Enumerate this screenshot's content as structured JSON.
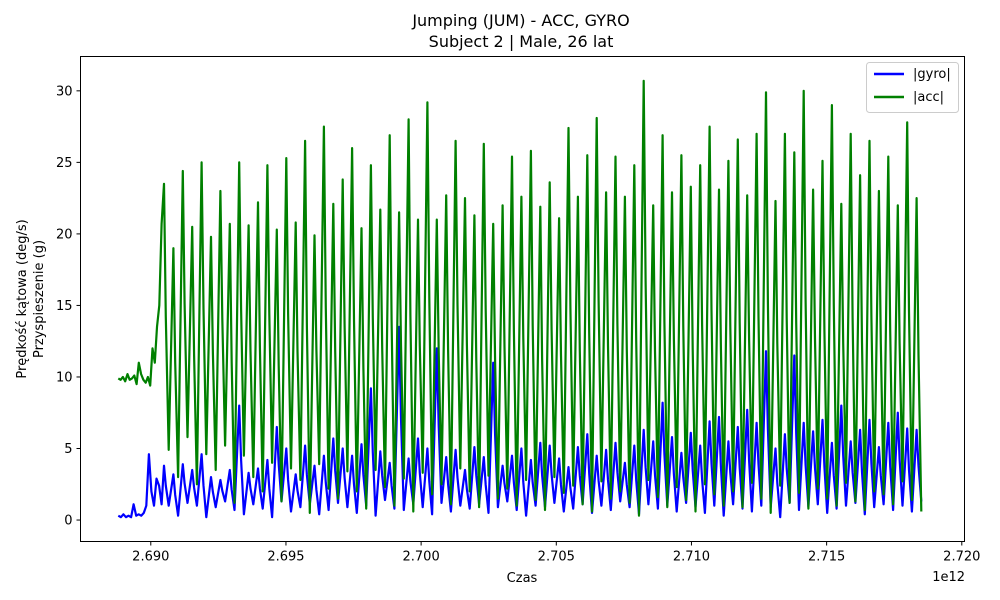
{
  "chart_data": {
    "type": "line",
    "title": "Jumping (JUM) - ACC, GYRO",
    "subtitle": "Subject 2 | Male, 26 lat",
    "xlabel": "Czas",
    "ylabel_line1": "Prędkość kątowa (deg/s)",
    "ylabel_line2": "Przyspieszenie (g)",
    "x_offset_label": "1e12",
    "xlim": [
      2.6874,
      2.7201
    ],
    "ylim": [
      -1.5,
      32.4
    ],
    "xticks": [
      2.69,
      2.695,
      2.7,
      2.705,
      2.71,
      2.715,
      2.72
    ],
    "xtick_labels": [
      "2.690",
      "2.695",
      "2.700",
      "2.705",
      "2.710",
      "2.715",
      "2.720"
    ],
    "yticks": [
      0,
      5,
      10,
      15,
      20,
      25,
      30
    ],
    "ytick_labels": [
      "0",
      "5",
      "10",
      "15",
      "20",
      "25",
      "30"
    ],
    "grid": false,
    "legend_position": "top-right",
    "x_start": 2.6888,
    "x_end": 2.7186,
    "jump_start": 2.6904,
    "jump_interval": 0.000348,
    "series": [
      {
        "name": "|gyro|",
        "color": "#0000ff",
        "values_head": [
          0.3,
          0.2,
          0.4,
          0.2,
          0.3,
          0.2,
          1.1,
          0.3,
          0.4,
          0.3,
          0.5,
          1.0,
          4.6,
          2.0,
          1.0,
          2.9,
          2.4,
          1.1
        ],
        "jump_peaks": [
          3.8,
          3.2,
          3.9,
          3.5,
          4.6,
          3.0,
          2.8,
          3.5,
          8.0,
          3.3,
          3.6,
          4.2,
          6.5,
          5.0,
          3.2,
          5.2,
          3.8,
          4.5,
          5.7,
          5.0,
          4.5,
          5.3,
          9.2,
          4.8,
          4.0,
          13.5,
          4.3,
          5.7,
          5.0,
          12.0,
          4.4,
          4.9,
          3.5,
          5.1,
          4.4,
          11.0,
          3.8,
          4.5,
          5.0,
          4.2,
          5.4,
          5.2,
          4.3,
          3.7,
          5.1,
          6.0,
          4.5,
          4.9,
          5.4,
          4.0,
          5.2,
          6.3,
          5.5,
          8.2,
          5.8,
          4.7,
          6.1,
          5.2,
          6.9,
          7.2,
          5.5,
          6.5,
          7.7,
          6.8,
          11.8,
          5.0,
          6.0,
          11.5,
          6.8,
          6.2,
          7.0,
          5.4,
          8.0,
          5.5,
          6.3,
          7.0,
          5.1,
          6.8,
          7.5,
          6.4,
          6.3,
          8.5,
          7.1,
          6.8,
          5.4,
          6.5,
          7.5,
          4.7,
          6.7,
          5.3,
          5.2,
          4.6,
          5.0,
          4.3,
          4.0,
          4.6,
          5.5,
          4.1,
          5.2,
          4.9,
          7.3,
          5.0,
          4.8,
          4.4,
          6.1,
          3.6,
          4.2,
          5.3,
          3.7,
          4.2,
          3.4,
          4.8,
          3.9,
          4.1,
          3.7,
          5.0,
          4.1,
          3.9,
          6.2,
          3.7,
          4.4,
          5.5,
          3.1,
          4.1,
          3.5,
          5.5
        ],
        "jump_troughs": [
          1.0,
          0.3,
          1.2,
          1.0,
          0.2,
          0.9,
          1.3,
          0.7,
          0.4,
          1.1,
          0.8,
          0.2,
          1.3,
          0.6,
          0.9,
          1.1,
          0.4,
          0.7,
          1.2,
          0.9,
          0.5,
          1.0,
          0.3,
          1.4,
          0.8,
          0.7,
          1.1,
          0.9,
          0.4,
          1.2,
          0.6,
          1.0,
          0.8,
          1.1,
          0.5,
          0.9,
          1.3,
          0.7,
          0.3,
          1.0,
          0.9,
          1.2,
          0.6,
          0.8,
          1.1,
          0.5,
          1.0,
          0.7,
          1.3,
          0.9,
          0.4,
          1.1,
          0.8,
          1.0,
          0.6,
          1.2,
          0.9,
          0.5,
          1.0,
          0.3,
          1.1,
          0.8,
          0.6,
          1.0,
          0.9,
          0.2,
          1.2,
          0.7,
          0.9,
          1.1,
          0.5,
          0.8,
          1.0,
          1.2,
          0.4,
          0.9,
          1.1,
          0.7,
          1.0,
          0.6,
          1.3,
          0.9,
          0.2,
          1.0,
          1.1,
          0.8,
          0.6,
          1.2,
          0.9,
          0.4,
          1.0,
          1.1,
          0.7,
          0.3,
          0.9,
          1.2,
          0.8,
          1.0,
          0.6,
          1.1,
          0.9,
          0.5,
          1.2,
          0.8,
          1.0,
          0.4,
          0.9,
          1.1,
          0.7,
          1.3,
          0.6,
          0.8,
          0.3,
          1.0,
          0.2,
          0.9,
          1.1,
          0.7,
          0.5,
          1.0,
          0.8,
          0.3,
          0.6,
          2.5,
          2.8,
          2.4
        ]
      },
      {
        "name": "|acc|",
        "color": "#008000",
        "values_head": [
          9.9,
          9.8,
          10.0,
          9.7,
          10.2,
          9.8,
          9.9,
          10.1,
          9.5,
          11.0,
          10.2,
          9.8,
          9.6,
          10.0,
          9.4,
          12.0,
          11.0,
          13.5,
          15.0,
          20.7
        ],
        "jump_peaks": [
          23.5,
          19.0,
          24.4,
          20.5,
          25.0,
          19.8,
          23.0,
          20.7,
          25.0,
          20.6,
          22.2,
          24.8,
          20.3,
          25.3,
          20.8,
          26.5,
          19.9,
          27.5,
          22.1,
          23.8,
          26.0,
          20.4,
          24.8,
          21.7,
          26.9,
          21.5,
          28.0,
          21.0,
          29.2,
          21.0,
          22.7,
          26.5,
          22.5,
          21.3,
          26.3,
          20.7,
          22.0,
          25.4,
          22.6,
          25.8,
          21.9,
          23.6,
          21.1,
          27.4,
          22.6,
          25.5,
          28.1,
          22.9,
          25.4,
          22.6,
          24.8,
          30.7,
          22.0,
          26.9,
          22.9,
          25.5,
          23.3,
          24.8,
          27.5,
          23.1,
          25.1,
          26.6,
          22.7,
          27.0,
          29.9,
          22.3,
          27.0,
          25.7,
          30.0,
          23.1,
          25.1,
          29.0,
          22.1,
          27.0,
          24.1,
          26.5,
          23.0,
          25.4,
          22.0,
          27.8,
          22.5,
          28.3,
          23.4,
          27.1,
          22.1,
          28.0,
          24.0,
          26.8,
          22.3,
          27.9,
          22.7,
          28.1,
          24.3,
          25.3,
          21.9,
          27.6,
          22.4,
          25.7,
          23.0,
          26.0,
          21.4,
          27.5,
          22.4,
          24.5,
          22.2,
          27.0,
          20.5,
          26.8,
          22.7,
          25.5,
          21.2,
          24.5,
          23.7,
          25.0,
          21.3,
          23.4,
          24.0,
          22.4,
          23.4,
          24.9,
          20.5,
          23.6,
          21.3,
          23.2,
          22.8,
          24.0
        ],
        "jump_troughs": [
          4.9,
          3.0,
          5.8,
          2.5,
          4.6,
          3.5,
          5.2,
          1.2,
          4.5,
          3.0,
          2.0,
          4.0,
          1.3,
          3.6,
          2.8,
          0.5,
          3.9,
          2.2,
          1.5,
          3.4,
          2.0,
          0.8,
          3.5,
          2.3,
          1.0,
          2.9,
          0.6,
          3.3,
          1.8,
          2.5,
          1.1,
          3.6,
          2.0,
          0.9,
          3.1,
          1.5,
          2.2,
          1.0,
          2.8,
          1.4,
          0.7,
          3.0,
          1.9,
          2.4,
          1.1,
          0.6,
          2.7,
          1.5,
          2.0,
          1.2,
          0.3,
          2.8,
          1.6,
          0.9,
          2.3,
          1.4,
          0.6,
          2.5,
          1.8,
          1.0,
          2.0,
          0.9,
          2.6,
          1.5,
          0.5,
          2.4,
          1.2,
          1.9,
          0.8,
          2.2,
          1.5,
          1.0,
          2.6,
          1.3,
          0.7,
          2.0,
          1.8,
          1.1,
          2.7,
          1.4,
          0.6,
          2.3,
          1.7,
          1.0,
          2.5,
          1.3,
          0.9,
          2.1,
          1.6,
          0.5,
          2.4,
          1.9,
          1.1,
          2.0,
          1.4,
          0.8,
          2.5,
          1.7,
          1.2,
          2.2,
          0.7,
          2.0,
          1.5,
          1.0,
          2.6,
          1.8,
          0.6,
          2.3,
          1.3,
          0.9,
          2.0,
          1.5,
          0.8,
          2.4,
          1.6,
          1.1,
          2.2,
          1.4,
          0.9,
          2.1,
          1.3,
          0.5,
          2.0,
          0.3,
          1.2,
          5.0,
          5.6,
          5.2
        ]
      }
    ]
  }
}
